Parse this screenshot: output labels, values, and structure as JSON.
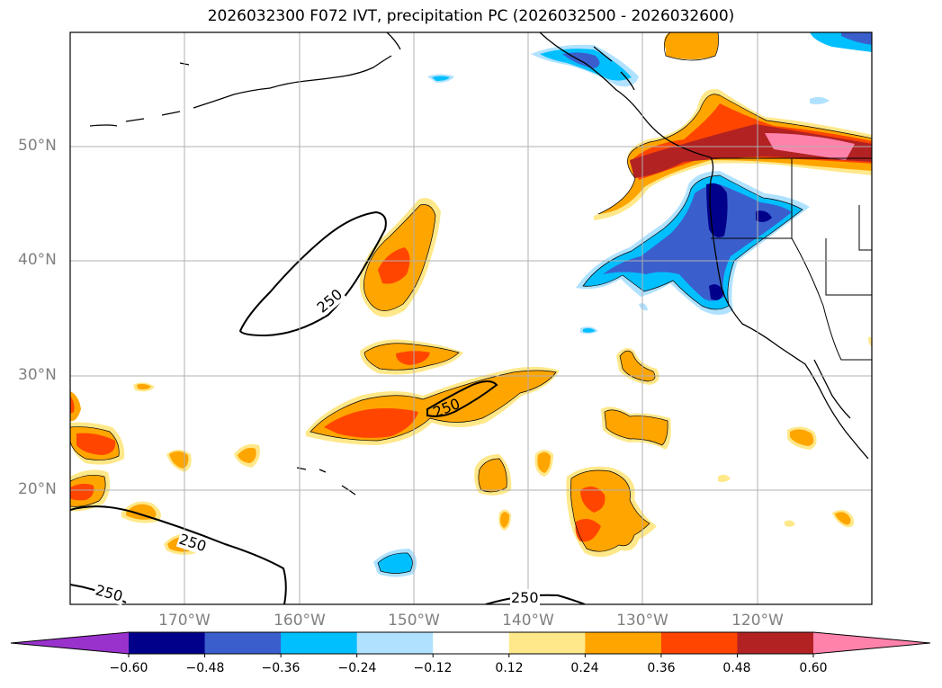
{
  "title": "2026032300 F072 IVT, precipitation PC (2026032500 - 2026032600)",
  "latitude_labels": [
    "50°N",
    "40°N",
    "30°N",
    "20°N"
  ],
  "longitude_labels": [
    "170°W",
    "160°W",
    "150°W",
    "140°W",
    "130°W",
    "120°W"
  ],
  "ivt_contour_label": "250",
  "colorbar": {
    "ticks": [
      "−0.60",
      "−0.48",
      "−0.36",
      "−0.24",
      "−0.12",
      "0.12",
      "0.24",
      "0.36",
      "0.48",
      "0.60"
    ],
    "colors": [
      "#9932cc",
      "#00008b",
      "#3a5fcd",
      "#00bfff",
      "#b0e2ff",
      "#ffffff",
      "#ffe88a",
      "#ffa500",
      "#ff4500",
      "#b22222",
      "#ff82ab"
    ]
  }
}
